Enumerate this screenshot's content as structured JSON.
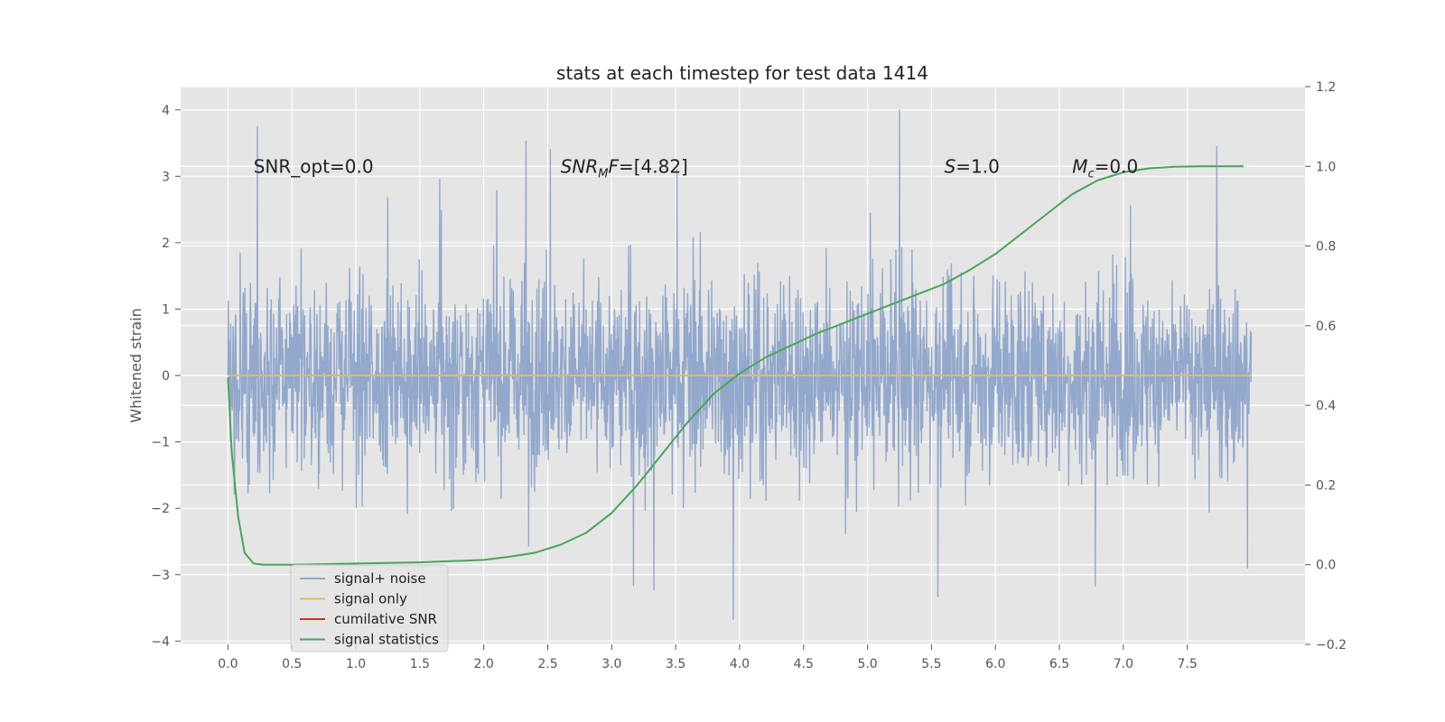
{
  "chart_data": {
    "type": "line",
    "title": "stats at each timestep for test data 1414",
    "ylabel": "Whitened strain",
    "xlabel": "",
    "xlim": [
      -0.37,
      8.42
    ],
    "ylim": [
      -4.05,
      4.35
    ],
    "y2lim": [
      -0.2,
      1.2
    ],
    "xticks": [
      "0.0",
      "0.5",
      "1.0",
      "1.5",
      "2.0",
      "2.5",
      "3.0",
      "3.5",
      "4.0",
      "4.5",
      "5.0",
      "5.5",
      "6.0",
      "6.5",
      "7.0",
      "7.5"
    ],
    "yticks": [
      "4",
      "3",
      "2",
      "1",
      "0",
      "−1",
      "−2",
      "−3",
      "−4"
    ],
    "y2ticks": [
      "1.2",
      "1.0",
      "0.8",
      "0.6",
      "0.4",
      "0.2",
      "0.0",
      "−0.2"
    ],
    "grid": true,
    "legend_position": "lower-left",
    "annotations": [
      {
        "text": "SNR_opt=0.0",
        "x": 0.2,
        "y": 3.15
      },
      {
        "text": "SNR_MF=[4.82]",
        "x": 2.6,
        "y": 3.15
      },
      {
        "text": "S=1.0",
        "x": 5.6,
        "y": 3.15
      },
      {
        "text": "M_c=0.0",
        "x": 6.6,
        "y": 3.15
      }
    ],
    "series": [
      {
        "name": "signal+ noise",
        "axis": "left",
        "color": "#92a8cc",
        "description_envelope": {
          "x_range": [
            0.0,
            8.0
          ],
          "typical_abs": 1.6,
          "peak_max": 4.0,
          "peak_min": -3.67
        },
        "peaks": [
          [
            0.23,
            3.75
          ],
          [
            2.33,
            3.53
          ],
          [
            2.52,
            3.4
          ],
          [
            3.51,
            3.1
          ],
          [
            5.25,
            4.0
          ],
          [
            7.73,
            3.45
          ],
          [
            3.95,
            -3.67
          ],
          [
            3.33,
            -3.23
          ],
          [
            3.17,
            -3.16
          ],
          [
            5.55,
            -3.33
          ],
          [
            6.78,
            -3.17
          ],
          [
            7.97,
            -2.9
          ]
        ]
      },
      {
        "name": "signal only",
        "axis": "left",
        "color": "#e8b85c",
        "x": [
          0.0,
          8.0
        ],
        "values": [
          0.0,
          0.0
        ]
      },
      {
        "name": "cumilative SNR",
        "axis": "left",
        "color": "#d62c1e",
        "x": [],
        "values": []
      },
      {
        "name": "signal statistics",
        "axis": "right",
        "color": "#4aa55a",
        "x": [
          0.0,
          0.03,
          0.08,
          0.13,
          0.2,
          0.28,
          0.5,
          1.0,
          1.5,
          2.0,
          2.2,
          2.4,
          2.6,
          2.8,
          3.0,
          3.2,
          3.4,
          3.6,
          3.8,
          4.0,
          4.2,
          4.4,
          4.6,
          4.8,
          5.0,
          5.2,
          5.4,
          5.6,
          5.8,
          6.0,
          6.2,
          6.4,
          6.6,
          6.8,
          7.0,
          7.2,
          7.4,
          7.6,
          7.94
        ],
        "values": [
          0.47,
          0.28,
          0.12,
          0.03,
          0.003,
          0.0,
          0.0,
          0.003,
          0.006,
          0.012,
          0.02,
          0.03,
          0.05,
          0.08,
          0.13,
          0.2,
          0.28,
          0.36,
          0.43,
          0.48,
          0.52,
          0.55,
          0.58,
          0.605,
          0.63,
          0.655,
          0.68,
          0.705,
          0.74,
          0.78,
          0.83,
          0.88,
          0.93,
          0.965,
          0.985,
          0.995,
          0.999,
          1.0,
          1.0
        ]
      }
    ]
  }
}
